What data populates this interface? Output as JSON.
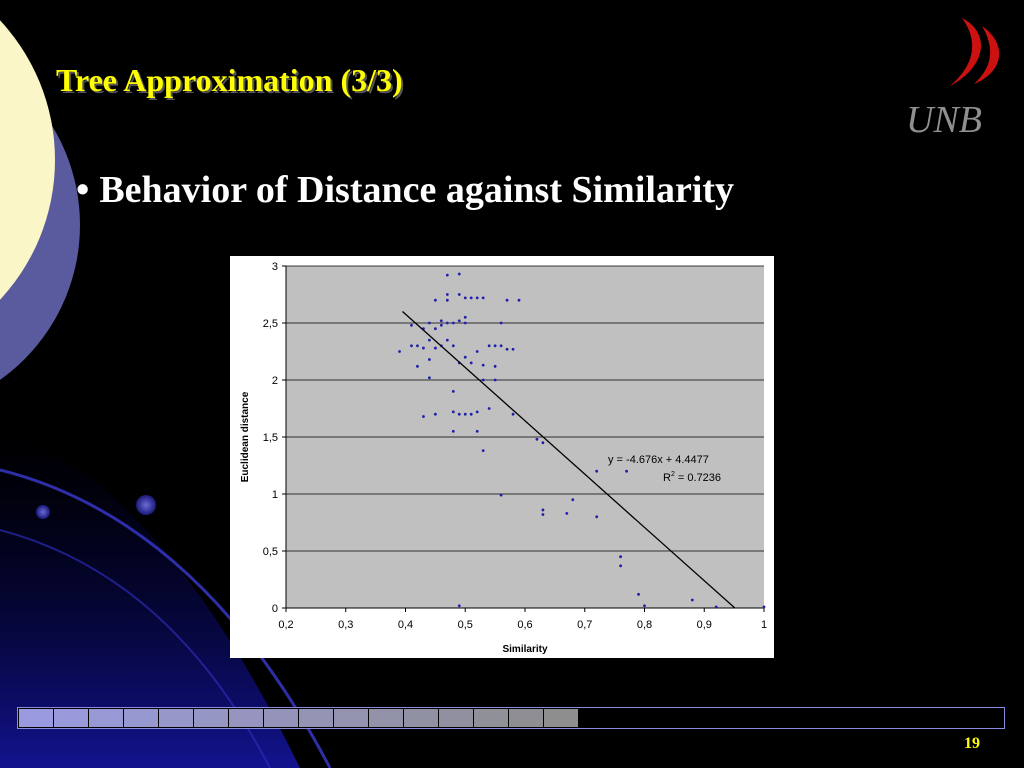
{
  "slide": {
    "title": "Tree Approximation (3/3)",
    "bullet": "Behavior of Distance against Similarity",
    "bullet_marker": "•",
    "page_number": "19",
    "logo_text": "UNB",
    "progress": {
      "completed": 16,
      "total": 28
    }
  },
  "colors": {
    "background": "#000000",
    "title": "#ffff00",
    "body_text": "#ffffff",
    "plot_area": "#c0c0c0",
    "points": "#1f1faa",
    "trendline": "#000000",
    "progress_filled_start": "#9a9ae0",
    "progress_filled_end": "#8e8e8e",
    "logo_red": "#cc1111",
    "logo_grey": "#8f8f8f"
  },
  "icons": {
    "logo": "unb-sail-logo"
  },
  "chart_data": {
    "type": "scatter",
    "xlabel": "Similarity",
    "ylabel": "Euclidean distance",
    "xlim": [
      0.2,
      1
    ],
    "ylim": [
      0,
      3
    ],
    "xticks": [
      "0,2",
      "0,3",
      "0,4",
      "0,5",
      "0,6",
      "0,7",
      "0,8",
      "0,9",
      "1"
    ],
    "yticks": [
      "0",
      "0,5",
      "1",
      "1,5",
      "2",
      "2,5",
      "3"
    ],
    "grid": "horizontal",
    "trendline": {
      "slope": -4.676,
      "intercept": 4.4477,
      "x_range": [
        0.395,
        0.951
      ],
      "equation_text": "y = -4.676x + 4.4477",
      "r2_prefix": "R",
      "r2_exponent": "2",
      "r2_value": " = 0.7236"
    },
    "points": [
      {
        "x": 0.39,
        "y": 2.25
      },
      {
        "x": 0.41,
        "y": 2.3
      },
      {
        "x": 0.41,
        "y": 2.48
      },
      {
        "x": 0.42,
        "y": 2.3
      },
      {
        "x": 0.42,
        "y": 2.12
      },
      {
        "x": 0.43,
        "y": 2.45
      },
      {
        "x": 0.43,
        "y": 2.28
      },
      {
        "x": 0.43,
        "y": 1.68
      },
      {
        "x": 0.44,
        "y": 2.5
      },
      {
        "x": 0.44,
        "y": 2.35
      },
      {
        "x": 0.44,
        "y": 2.18
      },
      {
        "x": 0.44,
        "y": 2.02
      },
      {
        "x": 0.45,
        "y": 2.7
      },
      {
        "x": 0.45,
        "y": 2.45
      },
      {
        "x": 0.45,
        "y": 2.28
      },
      {
        "x": 0.45,
        "y": 1.7
      },
      {
        "x": 0.46,
        "y": 2.52
      },
      {
        "x": 0.46,
        "y": 2.3
      },
      {
        "x": 0.46,
        "y": 2.48
      },
      {
        "x": 0.47,
        "y": 2.92
      },
      {
        "x": 0.47,
        "y": 2.75
      },
      {
        "x": 0.47,
        "y": 2.7
      },
      {
        "x": 0.47,
        "y": 2.5
      },
      {
        "x": 0.47,
        "y": 2.35
      },
      {
        "x": 0.48,
        "y": 2.5
      },
      {
        "x": 0.48,
        "y": 2.3
      },
      {
        "x": 0.48,
        "y": 1.9
      },
      {
        "x": 0.48,
        "y": 1.72
      },
      {
        "x": 0.48,
        "y": 1.55
      },
      {
        "x": 0.49,
        "y": 2.93
      },
      {
        "x": 0.49,
        "y": 2.75
      },
      {
        "x": 0.49,
        "y": 2.52
      },
      {
        "x": 0.49,
        "y": 2.15
      },
      {
        "x": 0.49,
        "y": 1.7
      },
      {
        "x": 0.49,
        "y": 0.02
      },
      {
        "x": 0.5,
        "y": 2.55
      },
      {
        "x": 0.5,
        "y": 2.5
      },
      {
        "x": 0.5,
        "y": 2.72
      },
      {
        "x": 0.5,
        "y": 2.2
      },
      {
        "x": 0.5,
        "y": 1.7
      },
      {
        "x": 0.51,
        "y": 2.72
      },
      {
        "x": 0.51,
        "y": 2.15
      },
      {
        "x": 0.51,
        "y": 1.7
      },
      {
        "x": 0.52,
        "y": 2.72
      },
      {
        "x": 0.52,
        "y": 2.25
      },
      {
        "x": 0.52,
        "y": 1.55
      },
      {
        "x": 0.52,
        "y": 1.72
      },
      {
        "x": 0.53,
        "y": 2.72
      },
      {
        "x": 0.53,
        "y": 2.13
      },
      {
        "x": 0.53,
        "y": 2.0
      },
      {
        "x": 0.53,
        "y": 1.38
      },
      {
        "x": 0.54,
        "y": 2.3
      },
      {
        "x": 0.54,
        "y": 1.75
      },
      {
        "x": 0.55,
        "y": 2.3
      },
      {
        "x": 0.55,
        "y": 2.12
      },
      {
        "x": 0.55,
        "y": 2.0
      },
      {
        "x": 0.56,
        "y": 2.5
      },
      {
        "x": 0.56,
        "y": 2.3
      },
      {
        "x": 0.56,
        "y": 0.99
      },
      {
        "x": 0.57,
        "y": 2.7
      },
      {
        "x": 0.57,
        "y": 2.27
      },
      {
        "x": 0.58,
        "y": 2.27
      },
      {
        "x": 0.58,
        "y": 1.7
      },
      {
        "x": 0.59,
        "y": 2.7
      },
      {
        "x": 0.62,
        "y": 1.48
      },
      {
        "x": 0.63,
        "y": 1.45
      },
      {
        "x": 0.63,
        "y": 0.86
      },
      {
        "x": 0.63,
        "y": 0.82
      },
      {
        "x": 0.67,
        "y": 0.83
      },
      {
        "x": 0.68,
        "y": 0.95
      },
      {
        "x": 0.72,
        "y": 1.2
      },
      {
        "x": 0.72,
        "y": 0.8
      },
      {
        "x": 0.76,
        "y": 0.45
      },
      {
        "x": 0.76,
        "y": 0.37
      },
      {
        "x": 0.77,
        "y": 1.2
      },
      {
        "x": 0.79,
        "y": 0.12
      },
      {
        "x": 0.8,
        "y": 0.02
      },
      {
        "x": 0.88,
        "y": 0.07
      },
      {
        "x": 0.92,
        "y": 0.01
      },
      {
        "x": 1.0,
        "y": 0.01
      }
    ]
  }
}
